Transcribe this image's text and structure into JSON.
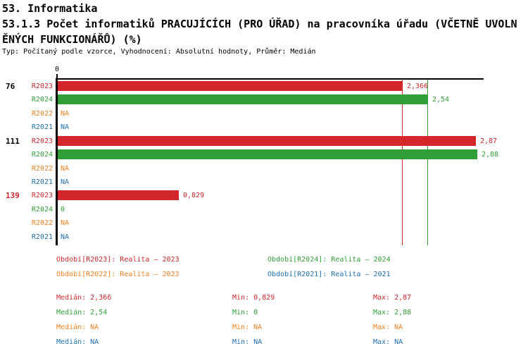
{
  "header": {
    "line1": "53. Informatika",
    "line2": "53.1.3 Počet informatiků PRACUJÍCÍCH (PRO ÚŘAD) na pracovníka úřadu (VČETNĚ UVOLN",
    "line3": "ĚNÝCH FUNKCIONÁŘŮ) (%)",
    "meta": "Typ: Počítaný podle vzorce, Vyhodnocení: Absolutní hodnoty, Průměr: Medián"
  },
  "colors": {
    "R2023": "#d2262b",
    "R2024": "#2f9e36",
    "R2022": "#ef8122",
    "R2021": "#1f6fad",
    "axis": "#000000",
    "group_default": "#000000",
    "group_highlight": "#d2262b"
  },
  "chart_data": {
    "type": "bar",
    "orientation": "horizontal",
    "title": "53.1.3 Počet informatiků PRACUJÍCÍCH (PRO ÚŘAD) na pracovníka úřadu (VČETNĚ UVOLNĚNÝCH FUNKCIONÁŘŮ) (%)",
    "xlabel": "",
    "ylabel": "",
    "xlim": [
      0,
      2.92
    ],
    "axis_origin_label": "0",
    "grid": false,
    "series_order": [
      "R2023",
      "R2024",
      "R2022",
      "R2021"
    ],
    "groups": [
      {
        "label": "76",
        "highlight": false,
        "rows": [
          {
            "series": "R2023",
            "value": 2.366,
            "label": "2,366"
          },
          {
            "series": "R2024",
            "value": 2.54,
            "label": "2,54"
          },
          {
            "series": "R2022",
            "value": null,
            "label": "NA"
          },
          {
            "series": "R2021",
            "value": null,
            "label": "NA"
          }
        ]
      },
      {
        "label": "111",
        "highlight": false,
        "rows": [
          {
            "series": "R2023",
            "value": 2.87,
            "label": "2,87"
          },
          {
            "series": "R2024",
            "value": 2.88,
            "label": "2,88"
          },
          {
            "series": "R2022",
            "value": null,
            "label": "NA"
          },
          {
            "series": "R2021",
            "value": null,
            "label": "NA"
          }
        ]
      },
      {
        "label": "139",
        "highlight": true,
        "rows": [
          {
            "series": "R2023",
            "value": 0.829,
            "label": "0,829"
          },
          {
            "series": "R2024",
            "value": 0,
            "label": "0"
          },
          {
            "series": "R2022",
            "value": null,
            "label": "NA"
          },
          {
            "series": "R2021",
            "value": null,
            "label": "NA"
          }
        ]
      }
    ],
    "median_lines": [
      {
        "series": "R2023",
        "value": 2.366
      },
      {
        "series": "R2024",
        "value": 2.54
      }
    ],
    "legend_position": "bottom"
  },
  "legend": [
    {
      "series": "R2023",
      "label": "Období[R2023]: Realita – 2023"
    },
    {
      "series": "R2024",
      "label": "Období[R2024]: Realita – 2024"
    },
    {
      "series": "R2022",
      "label": "Období[R2022]: Realita – 2022"
    },
    {
      "series": "R2021",
      "label": "Období[R2021]: Realita – 2021"
    }
  ],
  "stats": [
    {
      "series": "R2023",
      "median": "Medián: 2,366",
      "min": "Min: 0,829",
      "max": "Max: 2,87"
    },
    {
      "series": "R2024",
      "median": "Medián: 2,54",
      "min": "Min: 0",
      "max": "Max: 2,88"
    },
    {
      "series": "R2022",
      "median": "Medián: NA",
      "min": "Min: NA",
      "max": "Max: NA"
    },
    {
      "series": "R2021",
      "median": "Medián: NA",
      "min": "Min: NA",
      "max": "Max: NA"
    }
  ]
}
